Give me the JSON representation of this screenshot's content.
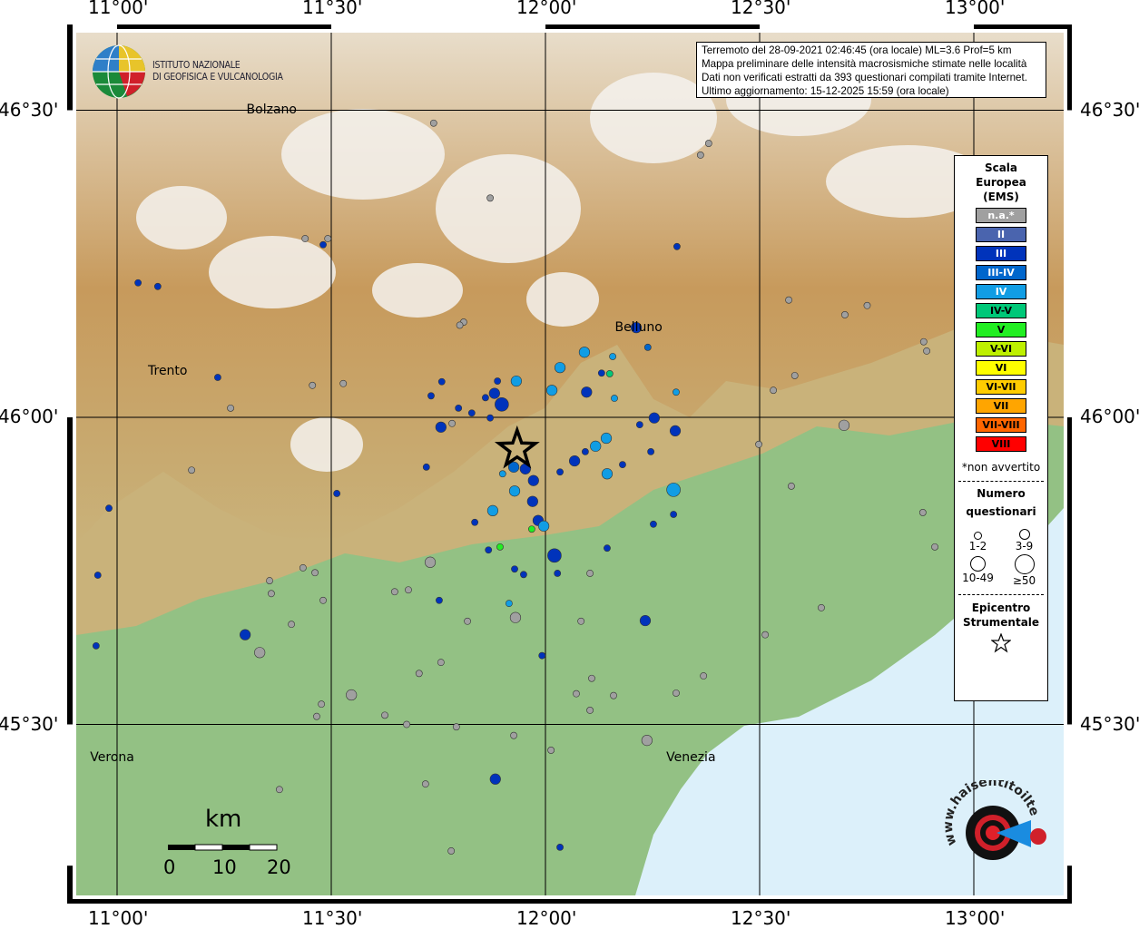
{
  "map": {
    "lon_ticks": [
      "11°00'",
      "11°30'",
      "12°00'",
      "12°30'",
      "13°00'"
    ],
    "lat_ticks": [
      "46°30'",
      "46°00'",
      "45°30'"
    ],
    "lon_values": [
      11.0,
      11.5,
      12.0,
      12.5,
      13.0
    ],
    "lat_values": [
      46.5,
      46.0,
      45.5
    ],
    "colors": {
      "lowland": "#93c184",
      "hills": "#c9b27a",
      "mountain": "#b98a4e",
      "snow": "#f4f2ee",
      "sea": "#dcf0fa"
    }
  },
  "header": {
    "logo_line1": "ISTITUTO NAZIONALE",
    "logo_line2": "DI GEOFISICA E VULCANOLOGIA"
  },
  "info": {
    "line1": "Terremoto del 28-09-2021 02:46:45 (ora locale) ML=3.6 Prof=5 km",
    "line2": "Mappa preliminare delle intensità macrosismiche stimate nelle località",
    "line3": "Dati non verificati estratti da 393 questionari compilati tramite Internet.",
    "line4": "Ultimo aggiornamento: 15-12-2025 15:59 (ora locale)"
  },
  "cities": [
    {
      "name": "Bolzano",
      "lon": 11.355,
      "lat": 46.495
    },
    {
      "name": "Trento",
      "lon": 11.125,
      "lat": 46.07
    },
    {
      "name": "Belluno",
      "lon": 12.215,
      "lat": 46.14
    },
    {
      "name": "Verona",
      "lon": 10.99,
      "lat": 45.44
    },
    {
      "name": "Venezia",
      "lon": 12.335,
      "lat": 45.44
    }
  ],
  "legend": {
    "title": [
      "Scala",
      "Europea",
      "(EMS)"
    ],
    "classes": [
      {
        "label": "n.a.*",
        "color": "#a0a0a0"
      },
      {
        "label": "II",
        "color": "#4a64ae"
      },
      {
        "label": "III",
        "color": "#0033bb"
      },
      {
        "label": "III-IV",
        "color": "#0066cc"
      },
      {
        "label": "IV",
        "color": "#119de4"
      },
      {
        "label": "IV-V",
        "color": "#00c878"
      },
      {
        "label": "V",
        "color": "#22ee22"
      },
      {
        "label": "V-VI",
        "color": "#bef000"
      },
      {
        "label": "VI",
        "color": "#ffff00"
      },
      {
        "label": "VI-VII",
        "color": "#ffcc00"
      },
      {
        "label": "VII",
        "color": "#ffa500"
      },
      {
        "label": "VII-VIII",
        "color": "#ff6600"
      },
      {
        "label": "VIII",
        "color": "#ff0000"
      }
    ],
    "note": "*non avvertito",
    "count_title": [
      "Numero",
      "questionari"
    ],
    "sizes": [
      "1-2",
      "3-9",
      "10-49",
      "≥50"
    ],
    "epicenter_title": [
      "Epicentro",
      "Strumentale"
    ]
  },
  "epicenter": {
    "lon": 11.934,
    "lat": 45.948
  },
  "scale_bar": {
    "unit": "km",
    "labels": [
      "0",
      "10",
      "20"
    ]
  },
  "brand": {
    "text": "www.haisentitoilterremoto.it"
  },
  "reports": [
    [
      11.739,
      46.479,
      "n.a.*",
      1
    ],
    [
      11.871,
      46.357,
      "n.a.*",
      1
    ],
    [
      11.439,
      46.291,
      "n.a.*",
      1
    ],
    [
      11.481,
      46.281,
      "III",
      1
    ],
    [
      11.492,
      46.291,
      "n.a.*",
      1
    ],
    [
      11.049,
      46.219,
      "III",
      1
    ],
    [
      11.095,
      46.213,
      "III",
      1
    ],
    [
      12.307,
      46.278,
      "III",
      1
    ],
    [
      12.362,
      46.427,
      "n.a.*",
      1
    ],
    [
      12.381,
      46.446,
      "n.a.*",
      1
    ],
    [
      12.212,
      46.146,
      "III",
      2
    ],
    [
      12.239,
      46.114,
      "III-IV",
      1
    ],
    [
      12.091,
      46.106,
      "IV",
      2
    ],
    [
      12.157,
      46.099,
      "IV",
      1
    ],
    [
      12.15,
      46.071,
      "IV-V",
      1
    ],
    [
      12.131,
      46.072,
      "III",
      1
    ],
    [
      12.034,
      46.081,
      "IV",
      2
    ],
    [
      11.932,
      46.059,
      "IV",
      2
    ],
    [
      11.888,
      46.059,
      "III",
      1
    ],
    [
      11.881,
      46.039,
      "III",
      2
    ],
    [
      11.898,
      46.021,
      "III",
      3
    ],
    [
      11.86,
      46.032,
      "III",
      1
    ],
    [
      12.015,
      46.044,
      "IV",
      2
    ],
    [
      12.096,
      46.041,
      "III",
      2
    ],
    [
      12.161,
      46.031,
      "IV",
      1
    ],
    [
      12.305,
      46.041,
      "IV",
      1
    ],
    [
      11.758,
      46.058,
      "III",
      1
    ],
    [
      11.733,
      46.035,
      "III",
      1
    ],
    [
      11.797,
      46.015,
      "III",
      1
    ],
    [
      11.828,
      46.007,
      "III",
      1
    ],
    [
      11.756,
      45.984,
      "III",
      2
    ],
    [
      11.871,
      45.999,
      "III",
      1
    ],
    [
      12.254,
      45.999,
      "III",
      2
    ],
    [
      12.22,
      45.988,
      "III",
      1
    ],
    [
      12.303,
      45.978,
      "III",
      2
    ],
    [
      12.142,
      45.966,
      "IV",
      2
    ],
    [
      12.117,
      45.953,
      "IV",
      2
    ],
    [
      12.093,
      45.944,
      "III",
      1
    ],
    [
      12.068,
      45.929,
      "III",
      2
    ],
    [
      12.034,
      45.911,
      "III",
      1
    ],
    [
      11.926,
      45.919,
      "III-IV",
      2
    ],
    [
      11.953,
      45.916,
      "III",
      2
    ],
    [
      11.972,
      45.897,
      "III",
      2
    ],
    [
      11.9,
      45.908,
      "IV",
      1
    ],
    [
      11.722,
      45.919,
      "III",
      1
    ],
    [
      11.513,
      45.876,
      "III",
      1
    ],
    [
      10.981,
      45.852,
      "III",
      1
    ],
    [
      11.174,
      45.914,
      "n.a.*",
      1
    ],
    [
      11.235,
      46.065,
      "III",
      1
    ],
    [
      12.144,
      45.908,
      "IV",
      2
    ],
    [
      12.18,
      45.923,
      "III",
      1
    ],
    [
      12.299,
      45.882,
      "IV",
      3
    ],
    [
      12.246,
      45.944,
      "III",
      1
    ],
    [
      11.97,
      45.863,
      "III",
      2
    ],
    [
      11.928,
      45.88,
      "IV",
      2
    ],
    [
      11.877,
      45.848,
      "IV",
      2
    ],
    [
      11.835,
      45.829,
      "III",
      1
    ],
    [
      11.983,
      45.832,
      "III",
      2
    ],
    [
      11.996,
      45.823,
      "IV",
      2
    ],
    [
      11.968,
      45.818,
      "V",
      1
    ],
    [
      11.894,
      45.789,
      "V",
      1
    ],
    [
      12.021,
      45.775,
      "III",
      3
    ],
    [
      12.028,
      45.746,
      "III",
      1
    ],
    [
      11.928,
      45.753,
      "III",
      1
    ],
    [
      11.949,
      45.744,
      "III",
      1
    ],
    [
      11.867,
      45.784,
      "III",
      1
    ],
    [
      12.144,
      45.787,
      "III",
      1
    ],
    [
      12.252,
      45.826,
      "III",
      1
    ],
    [
      12.299,
      45.842,
      "III",
      1
    ],
    [
      11.731,
      45.764,
      "n.a.*",
      2
    ],
    [
      11.752,
      45.702,
      "III",
      1
    ],
    [
      11.915,
      45.697,
      "IV",
      1
    ],
    [
      11.93,
      45.674,
      "n.a.*",
      2
    ],
    [
      12.233,
      45.669,
      "III",
      2
    ],
    [
      11.992,
      45.612,
      "III",
      1
    ],
    [
      11.299,
      45.646,
      "III",
      2
    ],
    [
      11.333,
      45.617,
      "n.a.*",
      2
    ],
    [
      10.951,
      45.628,
      "III",
      1
    ],
    [
      10.955,
      45.743,
      "III",
      1
    ],
    [
      11.883,
      45.411,
      "III",
      2
    ],
    [
      12.034,
      45.3,
      "III",
      1
    ],
    [
      12.697,
      45.987,
      "n.a.*",
      2
    ],
    [
      12.237,
      45.474,
      "n.a.*",
      2
    ],
    [
      11.547,
      45.548,
      "n.a.*",
      2
    ],
    [
      12.498,
      45.956,
      "n.a.*",
      1
    ],
    [
      12.574,
      45.888,
      "n.a.*",
      1
    ],
    [
      12.582,
      46.068,
      "n.a.*",
      1
    ],
    [
      12.532,
      46.044,
      "n.a.*",
      1
    ],
    [
      12.699,
      46.167,
      "n.a.*",
      1
    ],
    [
      12.751,
      46.182,
      "n.a.*",
      1
    ],
    [
      12.568,
      46.191,
      "n.a.*",
      1
    ],
    [
      12.883,
      46.123,
      "n.a.*",
      1
    ],
    [
      12.89,
      46.108,
      "n.a.*",
      1
    ],
    [
      12.881,
      45.845,
      "n.a.*",
      1
    ],
    [
      12.909,
      45.789,
      "n.a.*",
      1
    ],
    [
      12.644,
      45.69,
      "n.a.*",
      1
    ],
    [
      12.513,
      45.646,
      "n.a.*",
      1
    ],
    [
      12.369,
      45.579,
      "n.a.*",
      1
    ],
    [
      12.305,
      45.551,
      "n.a.*",
      1
    ],
    [
      12.104,
      45.746,
      "n.a.*",
      1
    ],
    [
      12.083,
      45.668,
      "n.a.*",
      1
    ],
    [
      12.108,
      45.575,
      "n.a.*",
      1
    ],
    [
      12.072,
      45.55,
      "n.a.*",
      1
    ],
    [
      12.159,
      45.547,
      "n.a.*",
      1
    ],
    [
      12.104,
      45.523,
      "n.a.*",
      1
    ],
    [
      11.926,
      45.482,
      "n.a.*",
      1
    ],
    [
      12.013,
      45.458,
      "n.a.*",
      1
    ],
    [
      11.792,
      45.496,
      "n.a.*",
      1
    ],
    [
      11.756,
      45.601,
      "n.a.*",
      1
    ],
    [
      11.705,
      45.583,
      "n.a.*",
      1
    ],
    [
      11.818,
      45.668,
      "n.a.*",
      1
    ],
    [
      11.676,
      45.5,
      "n.a.*",
      1
    ],
    [
      11.625,
      45.515,
      "n.a.*",
      1
    ],
    [
      11.477,
      45.533,
      "n.a.*",
      1
    ],
    [
      11.466,
      45.513,
      "n.a.*",
      1
    ],
    [
      11.72,
      45.403,
      "n.a.*",
      1
    ],
    [
      11.78,
      45.294,
      "n.a.*",
      1
    ],
    [
      11.379,
      45.394,
      "n.a.*",
      1
    ],
    [
      11.36,
      45.713,
      "n.a.*",
      1
    ],
    [
      11.356,
      45.734,
      "n.a.*",
      1
    ],
    [
      11.434,
      45.755,
      "n.a.*",
      1
    ],
    [
      11.462,
      45.747,
      "n.a.*",
      1
    ],
    [
      11.481,
      45.702,
      "n.a.*",
      1
    ],
    [
      11.407,
      45.663,
      "n.a.*",
      1
    ],
    [
      11.68,
      45.719,
      "n.a.*",
      1
    ],
    [
      11.648,
      45.716,
      "n.a.*",
      1
    ],
    [
      11.265,
      46.015,
      "n.a.*",
      1
    ],
    [
      11.456,
      46.052,
      "n.a.*",
      1
    ],
    [
      11.528,
      46.055,
      "n.a.*",
      1
    ],
    [
      11.809,
      46.155,
      "n.a.*",
      1
    ],
    [
      11.8,
      46.15,
      "n.a.*",
      1
    ],
    [
      11.782,
      45.99,
      "n.a.*",
      1
    ]
  ]
}
